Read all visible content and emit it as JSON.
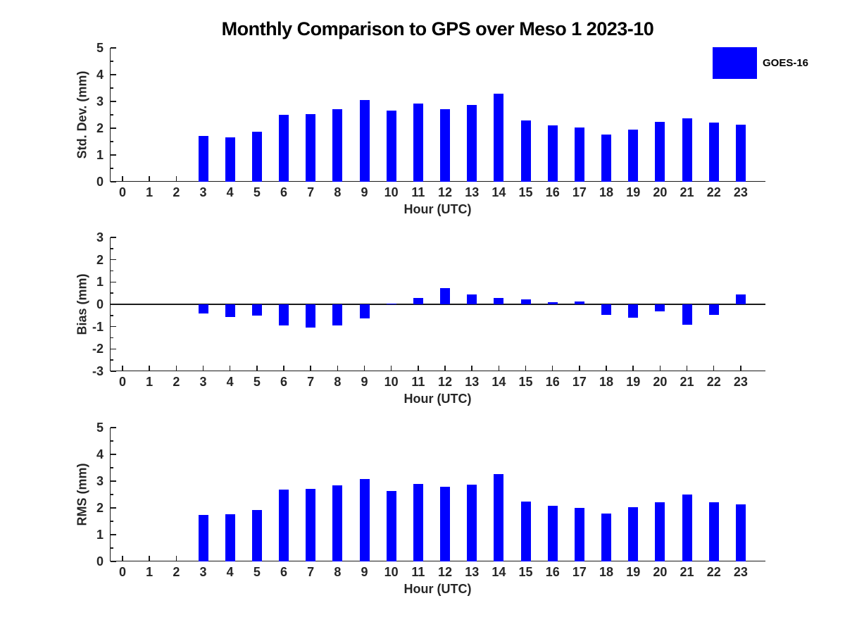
{
  "title": "Monthly Comparison to GPS over Meso 1 2023-10",
  "legend": {
    "label": "GOES-16",
    "color": "#0000FF",
    "position": "top-right"
  },
  "chart_data": [
    {
      "type": "bar",
      "name": "std-dev-panel",
      "title": "",
      "xlabel": "Hour (UTC)",
      "ylabel": "Std. Dev. (mm)",
      "ylim": [
        0,
        5
      ],
      "yticks": [
        0,
        1,
        2,
        3,
        4,
        5
      ],
      "grid": false,
      "categories": [
        "0",
        "1",
        "2",
        "3",
        "4",
        "5",
        "6",
        "7",
        "8",
        "9",
        "10",
        "11",
        "12",
        "13",
        "14",
        "15",
        "16",
        "17",
        "18",
        "19",
        "20",
        "21",
        "22",
        "23"
      ],
      "series": [
        {
          "name": "GOES-16",
          "values": [
            null,
            null,
            null,
            1.7,
            1.65,
            1.87,
            2.5,
            2.52,
            2.7,
            3.05,
            2.65,
            2.91,
            2.7,
            2.88,
            3.28,
            2.28,
            2.1,
            2.02,
            1.76,
            1.96,
            2.23,
            2.36,
            2.21,
            2.13
          ]
        }
      ]
    },
    {
      "type": "bar",
      "name": "bias-panel",
      "title": "",
      "xlabel": "Hour (UTC)",
      "ylabel": "Bias (mm)",
      "ylim": [
        -3,
        3
      ],
      "yticks": [
        -3,
        -2,
        -1,
        0,
        1,
        2,
        3
      ],
      "grid": false,
      "zero_line": true,
      "categories": [
        "0",
        "1",
        "2",
        "3",
        "4",
        "5",
        "6",
        "7",
        "8",
        "9",
        "10",
        "11",
        "12",
        "13",
        "14",
        "15",
        "16",
        "17",
        "18",
        "19",
        "20",
        "21",
        "22",
        "23"
      ],
      "series": [
        {
          "name": "GOES-16",
          "values": [
            null,
            null,
            null,
            -0.4,
            -0.57,
            -0.52,
            -0.96,
            -1.03,
            -0.96,
            -0.62,
            0.04,
            0.28,
            0.73,
            0.43,
            0.28,
            0.22,
            0.1,
            0.13,
            -0.46,
            -0.6,
            -0.33,
            -0.92,
            -0.46,
            0.45
          ]
        }
      ]
    },
    {
      "type": "bar",
      "name": "rms-panel",
      "title": "",
      "xlabel": "Hour (UTC)",
      "ylabel": "RMS (mm)",
      "ylim": [
        0,
        5
      ],
      "yticks": [
        0,
        1,
        2,
        3,
        4,
        5
      ],
      "grid": false,
      "categories": [
        "0",
        "1",
        "2",
        "3",
        "4",
        "5",
        "6",
        "7",
        "8",
        "9",
        "10",
        "11",
        "12",
        "13",
        "14",
        "15",
        "16",
        "17",
        "18",
        "19",
        "20",
        "21",
        "22",
        "23"
      ],
      "series": [
        {
          "name": "GOES-16",
          "values": [
            null,
            null,
            null,
            1.74,
            1.77,
            1.92,
            2.68,
            2.72,
            2.85,
            3.08,
            2.62,
            2.9,
            2.79,
            2.88,
            3.27,
            2.25,
            2.08,
            2.0,
            1.78,
            2.03,
            2.21,
            2.5,
            2.21,
            2.13
          ]
        }
      ]
    }
  ]
}
